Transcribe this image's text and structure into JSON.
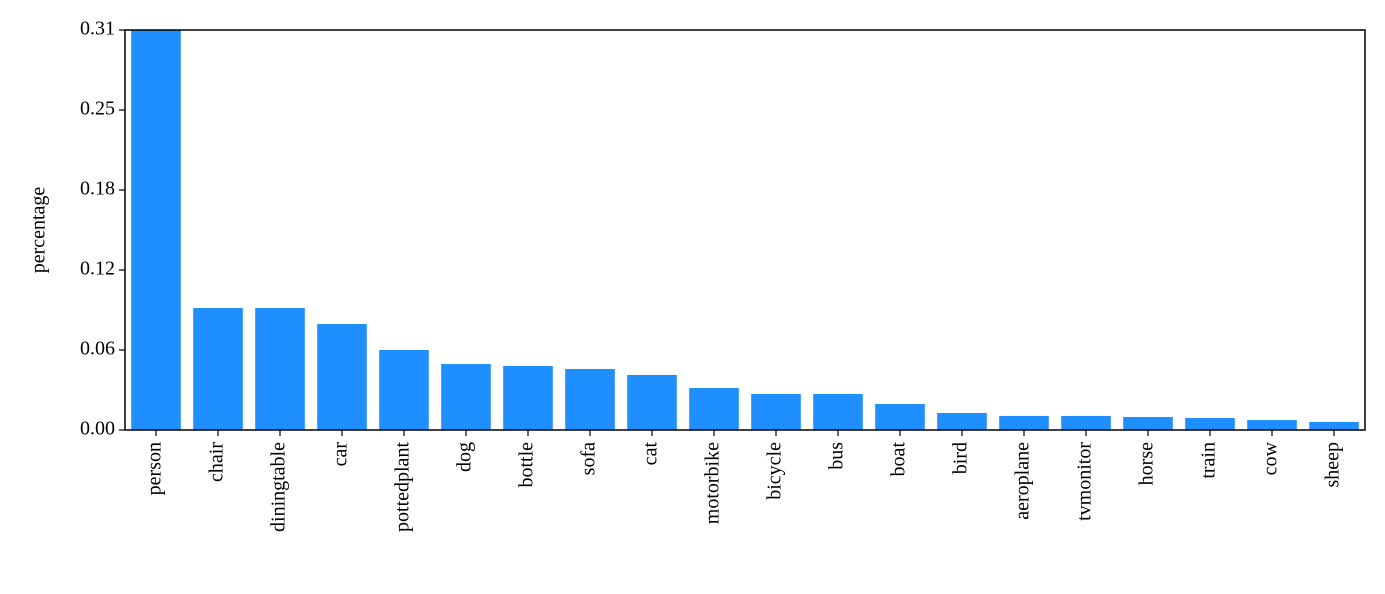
{
  "chart_data": {
    "type": "bar",
    "ylabel": "percentage",
    "categories": [
      "person",
      "chair",
      "diningtable",
      "car",
      "pottedplant",
      "dog",
      "bottle",
      "sofa",
      "cat",
      "motorbike",
      "bicycle",
      "bus",
      "boat",
      "bird",
      "aeroplane",
      "tvmonitor",
      "horse",
      "train",
      "cow",
      "sheep"
    ],
    "values": [
      0.3075,
      0.0938,
      0.0938,
      0.0815,
      0.0615,
      0.0507,
      0.0492,
      0.0469,
      0.0423,
      0.0323,
      0.0277,
      0.0277,
      0.02,
      0.0131,
      0.0108,
      0.0108,
      0.01,
      0.0092,
      0.0077,
      0.0062
    ],
    "color": "#1f8fff",
    "ylim": [
      0,
      0.3075
    ],
    "yticks": [
      {
        "value": 0,
        "label": "0.00"
      },
      {
        "value": 0.0615,
        "label": "0.06"
      },
      {
        "value": 0.123,
        "label": "0.12"
      },
      {
        "value": 0.1845,
        "label": "0.18"
      },
      {
        "value": 0.246,
        "label": "0.25"
      },
      {
        "value": 0.3075,
        "label": "0.31"
      }
    ],
    "grid": false
  }
}
